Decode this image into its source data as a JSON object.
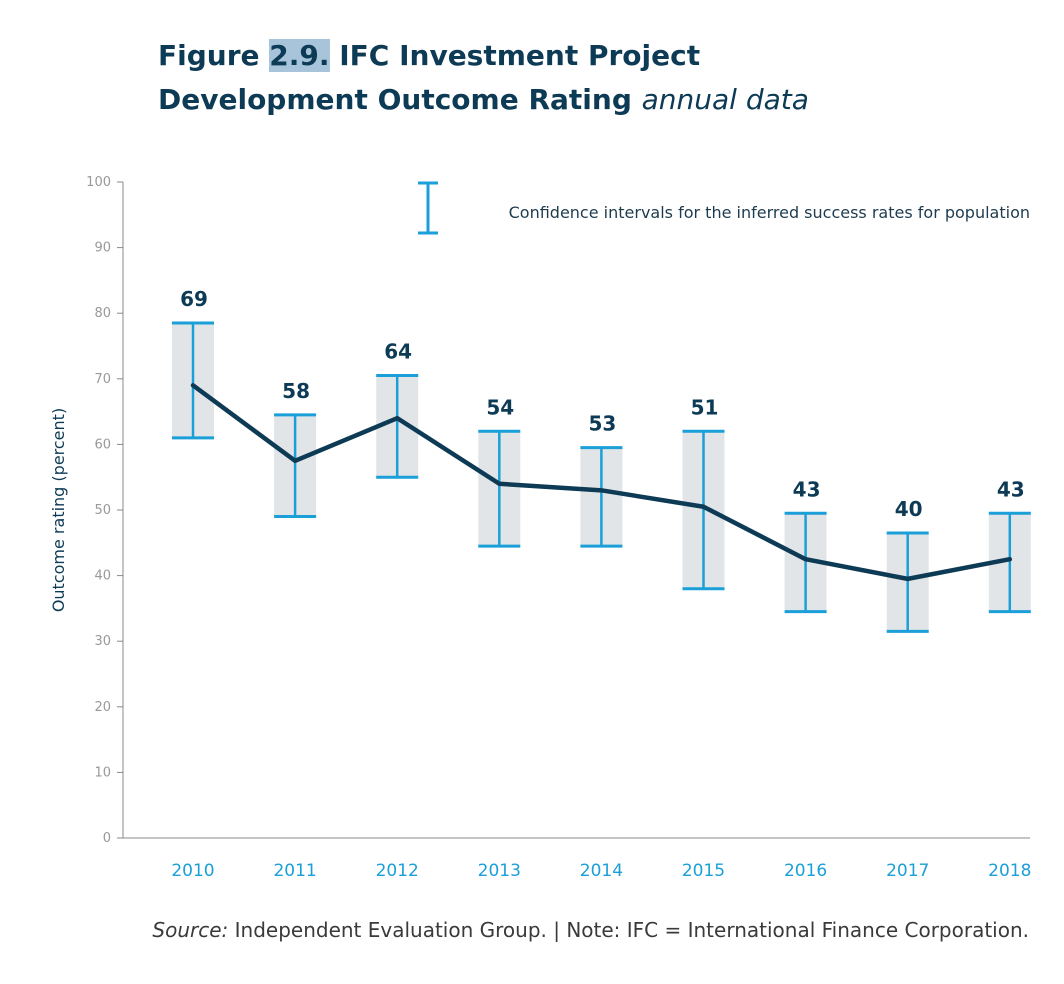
{
  "title": {
    "prefix": "Figure ",
    "number": "2.9.",
    "line1_rest": " IFC Investment Project",
    "line2_bold": "Development Outcome Rating ",
    "line2_italic": "annual data"
  },
  "source": {
    "label": "Source:",
    "text": " Independent Evaluation Group. | Note: IFC = International Finance Corporation."
  },
  "colors": {
    "line": "#0d3a55",
    "ci": "#1a9fd9",
    "ci_fill": "#e2e5e8",
    "axis": "#888888"
  },
  "chart_data": {
    "type": "line",
    "ylabel": "Outcome rating (percent)",
    "xlabel": "",
    "ylim": [
      0,
      100
    ],
    "yticks": [
      0,
      10,
      20,
      30,
      40,
      50,
      60,
      70,
      80,
      90,
      100
    ],
    "categories": [
      "2010",
      "2011",
      "2012",
      "2013",
      "2014",
      "2015",
      "2016",
      "2017",
      "2018"
    ],
    "values": [
      69,
      57.5,
      64,
      54,
      53,
      50.5,
      42.5,
      39.5,
      42.5
    ],
    "labels": [
      "69",
      "58",
      "64",
      "54",
      "53",
      "51",
      "43",
      "40",
      "43"
    ],
    "ci_low": [
      61,
      49,
      55,
      44.5,
      44.5,
      38,
      34.5,
      31.5,
      34.5
    ],
    "ci_high": [
      78.5,
      64.5,
      70.5,
      62,
      59.5,
      62,
      49.5,
      46.5,
      49.5
    ],
    "legend": "Confidence intervals for the inferred success rates for population",
    "legend_position": "top-right",
    "grid": false
  }
}
